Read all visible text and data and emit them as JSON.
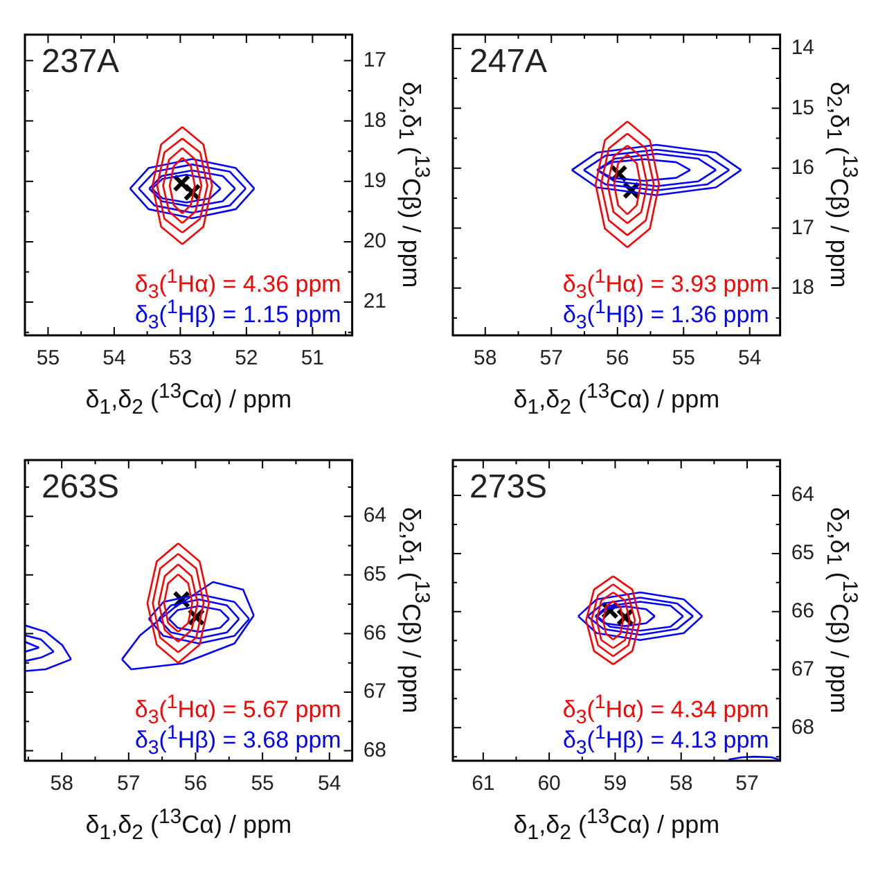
{
  "chart_data": [
    {
      "type": "line",
      "title": "237A",
      "xlabel": "δ$_{1}$,δ$_{2}$ ($^{13}$Cα) / ppm",
      "ylabel": "δ$_{2}$,δ$_{1}$ ($^{13}$Cβ) / ppm",
      "annotations": [
        "δ$_{3}$($^{1}$Hα) = 4.36 ppm",
        "δ$_{3}$($^{1}$Hβ) = 1.15 ppm"
      ],
      "xlim": [
        55.35,
        50.4
      ],
      "ylim": [
        21.55,
        16.57
      ],
      "xticks": [
        55,
        {
          "value": 54.5,
          "label": null
        },
        54,
        {
          "value": 53.5,
          "label": null
        },
        53,
        {
          "value": 52.5,
          "label": null
        },
        52,
        {
          "value": 51.5,
          "label": null
        },
        51,
        {
          "value": 50.5,
          "label": null
        }
      ],
      "yticks": [
        17,
        {
          "value": 17.5,
          "label": null
        },
        18,
        {
          "value": 18.5,
          "label": null
        },
        19,
        {
          "value": 19.5,
          "label": null
        },
        20,
        {
          "value": 20.5,
          "label": null
        },
        21,
        {
          "value": 21.5,
          "label": null
        }
      ],
      "series": [
        {
          "color": "#ff0000",
          "x": [
            52.97,
            53.29,
            53.42,
            53.29,
            52.97
          ],
          "values": [
            18.1,
            18.39,
            19.07,
            19.75,
            20.04
          ]
        },
        {
          "color": "#ff0000",
          "x": [
            52.97,
            52.65,
            52.52,
            52.65,
            52.97
          ],
          "values": [
            20.04,
            19.75,
            19.07,
            18.39,
            18.1
          ]
        },
        {
          "color": "#ff0000",
          "x": [
            52.97,
            53.24,
            53.35,
            53.24,
            52.97
          ],
          "values": [
            18.29,
            18.52,
            19.07,
            19.62,
            19.85
          ]
        },
        {
          "color": "#ff0000",
          "x": [
            52.97,
            52.7,
            52.59,
            52.7,
            52.97
          ],
          "values": [
            19.85,
            19.62,
            19.07,
            18.52,
            18.29
          ]
        },
        {
          "color": "#ff0000",
          "x": [
            52.97,
            53.17,
            53.26,
            53.17,
            52.97
          ],
          "values": [
            18.45,
            18.64,
            19.07,
            19.5,
            19.69
          ]
        },
        {
          "color": "#ff0000",
          "x": [
            52.97,
            52.77,
            52.68,
            52.77,
            52.97
          ],
          "values": [
            19.69,
            19.5,
            19.07,
            18.64,
            18.45
          ]
        },
        {
          "color": "#ff0000",
          "x": [
            52.97,
            53.1,
            53.16,
            53.1,
            52.97
          ],
          "values": [
            18.61,
            18.75,
            19.07,
            19.39,
            19.53
          ]
        },
        {
          "color": "#ff0000",
          "x": [
            52.97,
            52.84,
            52.78,
            52.84,
            52.97
          ],
          "values": [
            19.53,
            19.39,
            19.07,
            18.75,
            18.61
          ]
        },
        {
          "color": "#0000ff",
          "x": [
            53.76,
            53.48,
            52.82,
            52.16,
            51.88
          ],
          "values": [
            19.12,
            19.46,
            19.61,
            19.46,
            19.12
          ]
        },
        {
          "color": "#0000ff",
          "x": [
            51.88,
            52.16,
            52.82,
            53.48,
            53.76
          ],
          "values": [
            19.12,
            18.78,
            18.63,
            18.78,
            19.12
          ]
        },
        {
          "color": "#0000ff",
          "x": [
            53.63,
            53.39,
            52.82,
            52.25,
            52.01
          ],
          "values": [
            19.12,
            19.4,
            19.52,
            19.4,
            19.12
          ]
        },
        {
          "color": "#0000ff",
          "x": [
            52.01,
            52.25,
            52.82,
            53.39,
            53.63
          ],
          "values": [
            19.12,
            18.84,
            18.72,
            18.84,
            19.12
          ]
        },
        {
          "color": "#0000ff",
          "x": [
            53.47,
            53.28,
            52.82,
            52.36,
            52.17
          ],
          "values": [
            19.12,
            19.33,
            19.42,
            19.33,
            19.12
          ]
        },
        {
          "color": "#0000ff",
          "x": [
            52.17,
            52.36,
            52.82,
            53.28,
            53.47
          ],
          "values": [
            19.12,
            18.91,
            18.82,
            18.91,
            19.12
          ]
        },
        {
          "color": "#0000ff",
          "x": [
            53.43,
            53.27,
            52.91,
            52.55,
            52.39
          ],
          "values": [
            19.12,
            19.28,
            19.35,
            19.28,
            19.12
          ]
        },
        {
          "color": "#0000ff",
          "x": [
            52.39,
            52.55,
            52.91,
            53.27,
            53.43
          ],
          "values": [
            19.12,
            18.96,
            18.89,
            18.96,
            19.12
          ]
        },
        {
          "type": "scatter",
          "marker": "cross",
          "color": "#000000",
          "x": [
            52.98,
            52.82
          ],
          "values": [
            19.03,
            19.18
          ]
        }
      ]
    },
    {
      "type": "line",
      "title": "247A",
      "xlabel": "δ$_{1}$,δ$_{2}$ ($^{13}$Cα) / ppm",
      "ylabel": "δ$_{2}$,δ$_{1}$ ($^{13}$Cβ) / ppm",
      "annotations": [
        "δ$_{3}$($^{1}$Hα) = 3.93 ppm",
        "δ$_{3}$($^{1}$Hβ) = 1.36 ppm"
      ],
      "xlim": [
        58.49,
        53.54
      ],
      "ylim": [
        18.79,
        13.77
      ],
      "xticks": [
        58,
        {
          "value": 57.5,
          "label": null
        },
        57,
        {
          "value": 56.5,
          "label": null
        },
        56,
        {
          "value": 55.5,
          "label": null
        },
        55,
        {
          "value": 54.5,
          "label": null
        },
        54
      ],
      "yticks": [
        14,
        {
          "value": 14.5,
          "label": null
        },
        15,
        {
          "value": 15.5,
          "label": null
        },
        16,
        {
          "value": 16.5,
          "label": null
        },
        17,
        {
          "value": 17.5,
          "label": null
        },
        18,
        {
          "value": 18.5,
          "label": null
        }
      ],
      "series": [
        {
          "color": "#ff0000",
          "x": [
            55.85,
            56.19,
            56.33,
            56.19,
            55.85
          ],
          "values": [
            15.22,
            15.53,
            16.27,
            17.01,
            17.32
          ]
        },
        {
          "color": "#ff0000",
          "x": [
            55.85,
            55.51,
            55.37,
            55.51,
            55.85
          ],
          "values": [
            17.32,
            17.01,
            16.27,
            15.53,
            15.22
          ]
        },
        {
          "color": "#ff0000",
          "x": [
            55.85,
            56.13,
            56.25,
            56.13,
            55.85
          ],
          "values": [
            15.42,
            15.67,
            16.27,
            16.87,
            17.12
          ]
        },
        {
          "color": "#ff0000",
          "x": [
            55.85,
            55.57,
            55.45,
            55.57,
            55.85
          ],
          "values": [
            17.12,
            16.87,
            16.27,
            15.67,
            15.42
          ]
        },
        {
          "color": "#ff0000",
          "x": [
            55.85,
            56.06,
            56.15,
            56.06,
            55.85
          ],
          "values": [
            15.62,
            15.81,
            16.27,
            16.73,
            16.92
          ]
        },
        {
          "color": "#ff0000",
          "x": [
            55.85,
            55.64,
            55.55,
            55.64,
            55.85
          ],
          "values": [
            16.92,
            16.73,
            16.27,
            15.81,
            15.62
          ]
        },
        {
          "color": "#ff0000",
          "x": [
            55.85,
            55.99,
            56.05,
            55.99,
            55.85
          ],
          "values": [
            15.77,
            15.92,
            16.27,
            16.62,
            16.77
          ]
        },
        {
          "color": "#ff0000",
          "x": [
            55.85,
            55.71,
            55.65,
            55.71,
            55.85
          ],
          "values": [
            16.77,
            16.62,
            16.27,
            15.92,
            15.77
          ]
        },
        {
          "color": "#0000ff",
          "x": [
            56.69,
            56.31,
            55.41,
            54.51,
            54.13
          ],
          "values": [
            16.03,
            16.32,
            16.45,
            16.32,
            16.03
          ]
        },
        {
          "color": "#0000ff",
          "x": [
            54.13,
            54.51,
            55.41,
            56.31,
            56.69
          ],
          "values": [
            16.03,
            15.74,
            15.61,
            15.74,
            16.03
          ]
        },
        {
          "color": "#0000ff",
          "x": [
            56.51,
            56.18,
            55.41,
            54.64,
            54.31
          ],
          "values": [
            16.03,
            16.27,
            16.37,
            16.27,
            16.03
          ]
        },
        {
          "color": "#0000ff",
          "x": [
            54.31,
            54.64,
            55.41,
            56.18,
            56.51
          ],
          "values": [
            16.03,
            15.79,
            15.69,
            15.79,
            16.03
          ]
        },
        {
          "color": "#0000ff",
          "x": [
            56.31,
            56.04,
            55.41,
            54.78,
            54.51
          ],
          "values": [
            16.03,
            16.22,
            16.3,
            16.22,
            16.03
          ]
        },
        {
          "color": "#0000ff",
          "x": [
            54.51,
            54.78,
            55.41,
            56.04,
            56.31
          ],
          "values": [
            16.03,
            15.84,
            15.76,
            15.84,
            16.03
          ]
        },
        {
          "color": "#0000ff",
          "x": [
            56.3,
            56.09,
            55.6,
            55.11,
            54.9
          ],
          "values": [
            16.03,
            16.16,
            16.21,
            16.16,
            16.03
          ]
        },
        {
          "color": "#0000ff",
          "x": [
            54.9,
            55.11,
            55.6,
            56.09,
            56.3
          ],
          "values": [
            16.03,
            15.9,
            15.85,
            15.9,
            16.03
          ]
        },
        {
          "type": "scatter",
          "marker": "cross",
          "color": "#000000",
          "x": [
            55.98,
            55.79
          ],
          "values": [
            16.09,
            16.37
          ]
        }
      ]
    },
    {
      "type": "line",
      "title": "263S",
      "xlabel": "δ$_{1}$,δ$_{2}$ ($^{13}$Cα) / ppm",
      "ylabel": "δ$_{2}$,δ$_{1}$ ($^{13}$Cβ) / ppm",
      "annotations": [
        "δ$_{3}$($^{1}$Hα) = 5.67 ppm",
        "δ$_{3}$($^{1}$Hβ) = 3.68 ppm"
      ],
      "xlim": [
        58.55,
        53.66
      ],
      "ylim": [
        68.17,
        63.04
      ],
      "xticks": [
        {
          "value": 58.5,
          "label": null
        },
        58,
        {
          "value": 57.5,
          "label": null
        },
        57,
        {
          "value": 56.5,
          "label": null
        },
        56,
        {
          "value": 55.5,
          "label": null
        },
        55,
        {
          "value": 54.5,
          "label": null
        },
        54
      ],
      "yticks": [
        {
          "value": 63.5,
          "label": null
        },
        64,
        {
          "value": 64.5,
          "label": null
        },
        65,
        {
          "value": 65.5,
          "label": null
        },
        66,
        {
          "value": 66.5,
          "label": null
        },
        67,
        {
          "value": 67.5,
          "label": null
        },
        68
      ],
      "series": [
        {
          "color": "#ff0000",
          "x": [
            56.26,
            56.58,
            56.72,
            56.58,
            56.26
          ],
          "values": [
            64.46,
            64.77,
            65.48,
            66.19,
            66.5
          ]
        },
        {
          "color": "#ff0000",
          "x": [
            56.26,
            55.94,
            55.8,
            55.94,
            56.26
          ],
          "values": [
            66.5,
            66.19,
            65.48,
            64.77,
            64.46
          ]
        },
        {
          "color": "#ff0000",
          "x": [
            56.26,
            56.53,
            56.64,
            56.53,
            56.26
          ],
          "values": [
            64.64,
            64.89,
            65.48,
            66.07,
            66.32
          ]
        },
        {
          "color": "#ff0000",
          "x": [
            56.26,
            55.99,
            55.88,
            55.99,
            56.26
          ],
          "values": [
            66.32,
            66.07,
            65.48,
            64.89,
            64.64
          ]
        },
        {
          "color": "#ff0000",
          "x": [
            56.26,
            56.46,
            56.55,
            56.46,
            56.26
          ],
          "values": [
            64.82,
            65.02,
            65.48,
            65.94,
            66.14
          ]
        },
        {
          "color": "#ff0000",
          "x": [
            56.26,
            56.06,
            55.97,
            56.06,
            56.26
          ],
          "values": [
            66.14,
            65.94,
            65.48,
            65.02,
            64.82
          ]
        },
        {
          "color": "#ff0000",
          "x": [
            56.26,
            56.41,
            56.47,
            56.41,
            56.26
          ],
          "values": [
            64.99,
            65.14,
            65.48,
            65.82,
            65.97
          ]
        },
        {
          "color": "#ff0000",
          "x": [
            56.26,
            56.11,
            56.05,
            56.11,
            56.26
          ],
          "values": [
            65.97,
            65.82,
            65.48,
            65.14,
            64.99
          ]
        },
        {
          "color": "#0000ff",
          "x": [
            57.1,
            56.83,
            56.32,
            55.74,
            55.29,
            55.13
          ],
          "values": [
            66.44,
            66.03,
            65.56,
            65.12,
            65.25,
            65.69
          ]
        },
        {
          "color": "#0000ff",
          "x": [
            55.13,
            55.42,
            56.19,
            56.96,
            57.1
          ],
          "values": [
            65.69,
            66.17,
            66.51,
            66.61,
            66.44
          ]
        },
        {
          "color": "#0000ff",
          "x": [
            56.7,
            56.48,
            55.95,
            55.42,
            55.2
          ],
          "values": [
            65.75,
            66.04,
            66.17,
            66.04,
            65.75
          ]
        },
        {
          "color": "#0000ff",
          "x": [
            55.2,
            55.42,
            55.95,
            56.48,
            56.7
          ],
          "values": [
            65.75,
            65.46,
            65.33,
            65.46,
            65.75
          ]
        },
        {
          "color": "#0000ff",
          "x": [
            56.55,
            56.37,
            55.95,
            55.53,
            55.35
          ],
          "values": [
            65.75,
            65.98,
            66.08,
            65.98,
            65.75
          ]
        },
        {
          "color": "#0000ff",
          "x": [
            55.35,
            55.53,
            55.95,
            56.37,
            56.55
          ],
          "values": [
            65.75,
            65.52,
            65.42,
            65.52,
            65.75
          ]
        },
        {
          "color": "#0000ff",
          "x": [
            56.4,
            56.27,
            55.95,
            55.63,
            55.5
          ],
          "values": [
            65.75,
            65.9,
            65.97,
            65.9,
            65.75
          ]
        },
        {
          "color": "#0000ff",
          "x": [
            55.5,
            55.63,
            55.95,
            56.27,
            56.4
          ],
          "values": [
            65.75,
            65.6,
            65.53,
            65.6,
            65.75
          ]
        },
        {
          "color": "#0000ff",
          "x": [
            58.55,
            58.24,
            57.99,
            57.86
          ],
          "values": [
            65.86,
            65.97,
            66.2,
            66.44
          ]
        },
        {
          "color": "#0000ff",
          "x": [
            57.86,
            58.24,
            58.55
          ],
          "values": [
            66.44,
            66.61,
            66.64
          ]
        },
        {
          "color": "#0000ff",
          "x": [
            58.55,
            58.31,
            58.12
          ],
          "values": [
            66.03,
            66.1,
            66.31
          ]
        },
        {
          "color": "#0000ff",
          "x": [
            58.12,
            58.31,
            58.55
          ],
          "values": [
            66.31,
            66.41,
            66.47
          ]
        },
        {
          "color": "#0000ff",
          "x": [
            58.55,
            58.34
          ],
          "values": [
            66.14,
            66.24
          ]
        },
        {
          "color": "#0000ff",
          "x": [
            58.34,
            58.55
          ],
          "values": [
            66.24,
            66.31
          ]
        },
        {
          "type": "scatter",
          "marker": "cross",
          "color": "#000000",
          "x": [
            56.21,
            55.99
          ],
          "values": [
            65.42,
            65.72
          ]
        }
      ]
    },
    {
      "type": "line",
      "title": "273S",
      "xlabel": "δ$_{1}$,δ$_{2}$ ($^{13}$Cα) / ppm",
      "ylabel": "δ$_{2}$,δ$_{1}$ ($^{13}$Cβ) / ppm",
      "annotations": [
        "δ$_{3}$($^{1}$Hα) = 4.34 ppm",
        "δ$_{3}$($^{1}$Hβ) = 4.13 ppm"
      ],
      "xlim": [
        61.46,
        56.5
      ],
      "ylim": [
        68.57,
        63.39
      ],
      "xticks": [
        61,
        {
          "value": 60.5,
          "label": null
        },
        60,
        {
          "value": 59.5,
          "label": null
        },
        59,
        {
          "value": 58.5,
          "label": null
        },
        58,
        {
          "value": 57.5,
          "label": null
        },
        57
      ],
      "yticks": [
        {
          "value": 63.5,
          "label": null
        },
        64,
        {
          "value": 64.5,
          "label": null
        },
        65,
        {
          "value": 65.5,
          "label": null
        },
        66,
        {
          "value": 66.5,
          "label": null
        },
        67,
        {
          "value": 67.5,
          "label": null
        },
        68,
        {
          "value": 68.5,
          "label": null
        }
      ],
      "series": [
        {
          "color": "#ff0000",
          "x": [
            59.03,
            59.32,
            59.44,
            59.32,
            59.03
          ],
          "values": [
            65.39,
            65.62,
            66.15,
            66.68,
            66.91
          ]
        },
        {
          "color": "#ff0000",
          "x": [
            59.03,
            58.74,
            58.62,
            58.74,
            59.03
          ],
          "values": [
            66.91,
            66.68,
            66.15,
            65.62,
            65.39
          ]
        },
        {
          "color": "#ff0000",
          "x": [
            59.03,
            59.26,
            59.36,
            59.26,
            59.03
          ],
          "values": [
            65.53,
            65.72,
            66.15,
            66.58,
            66.77
          ]
        },
        {
          "color": "#ff0000",
          "x": [
            59.03,
            58.8,
            58.7,
            58.8,
            59.03
          ],
          "values": [
            66.77,
            66.58,
            66.15,
            65.72,
            65.53
          ]
        },
        {
          "color": "#ff0000",
          "x": [
            59.03,
            59.21,
            59.28,
            59.21,
            59.03
          ],
          "values": [
            65.67,
            65.81,
            66.15,
            66.49,
            66.63
          ]
        },
        {
          "color": "#ff0000",
          "x": [
            59.03,
            58.85,
            58.78,
            58.85,
            59.03
          ],
          "values": [
            66.63,
            66.49,
            66.15,
            65.81,
            65.67
          ]
        },
        {
          "color": "#ff0000",
          "x": [
            59.03,
            59.14,
            59.18,
            59.14,
            59.03
          ],
          "values": [
            65.82,
            65.92,
            66.15,
            66.38,
            66.48
          ]
        },
        {
          "color": "#ff0000",
          "x": [
            59.03,
            58.92,
            58.88,
            58.92,
            59.03
          ],
          "values": [
            66.48,
            66.38,
            66.15,
            65.92,
            65.82
          ]
        },
        {
          "color": "#0000ff",
          "x": [
            59.56,
            59.28,
            58.62,
            57.96,
            57.68
          ],
          "values": [
            66.08,
            66.37,
            66.49,
            66.37,
            66.08
          ]
        },
        {
          "color": "#0000ff",
          "x": [
            57.68,
            57.96,
            58.62,
            59.28,
            59.56
          ],
          "values": [
            66.08,
            65.79,
            65.67,
            65.79,
            66.08
          ]
        },
        {
          "color": "#0000ff",
          "x": [
            59.42,
            59.18,
            58.62,
            58.06,
            57.82
          ],
          "values": [
            66.08,
            66.3,
            66.4,
            66.3,
            66.08
          ]
        },
        {
          "color": "#0000ff",
          "x": [
            57.82,
            58.06,
            58.62,
            59.18,
            59.42
          ],
          "values": [
            66.08,
            65.86,
            65.76,
            65.86,
            66.08
          ]
        },
        {
          "color": "#0000ff",
          "x": [
            59.27,
            59.08,
            58.62,
            58.16,
            57.97
          ],
          "values": [
            66.08,
            66.26,
            66.33,
            66.26,
            66.08
          ]
        },
        {
          "color": "#0000ff",
          "x": [
            57.97,
            58.16,
            58.62,
            59.08,
            59.27
          ],
          "values": [
            66.08,
            65.9,
            65.83,
            65.9,
            66.08
          ]
        },
        {
          "color": "#0000ff",
          "x": [
            59.3,
            59.17,
            58.85,
            58.53,
            58.4
          ],
          "values": [
            66.08,
            66.2,
            66.25,
            66.2,
            66.08
          ]
        },
        {
          "color": "#0000ff",
          "x": [
            58.4,
            58.53,
            58.85,
            59.17,
            59.3
          ],
          "values": [
            66.08,
            65.96,
            65.91,
            65.96,
            66.08
          ]
        },
        {
          "color": "#0000ff",
          "x": [
            57.28,
            57.08,
            56.89,
            56.63,
            56.52
          ],
          "values": [
            68.55,
            68.51,
            68.5,
            68.51,
            68.55
          ]
        },
        {
          "type": "scatter",
          "marker": "cross",
          "color": "#000000",
          "x": [
            59.08,
            58.85
          ],
          "values": [
            65.98,
            66.1
          ]
        }
      ]
    }
  ]
}
